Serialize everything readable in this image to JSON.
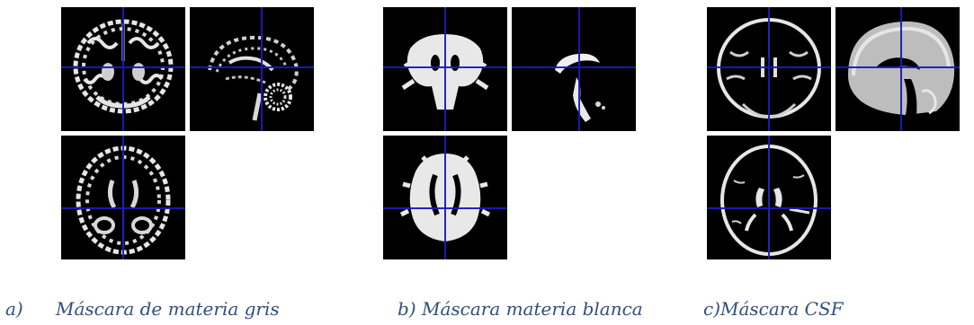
{
  "figure": {
    "groups": [
      {
        "id": "gm",
        "label_prefix": "a)",
        "label_text": "Máscara de materia gris",
        "views": [
          "coronal",
          "sagittal",
          "axial"
        ]
      },
      {
        "id": "wm",
        "label_prefix": "",
        "label_text": "b) Máscara materia blanca",
        "views": [
          "coronal",
          "sagittal",
          "axial"
        ]
      },
      {
        "id": "csf",
        "label_prefix": "",
        "label_text": "c)Máscara CSF",
        "views": [
          "coronal",
          "sagittal",
          "axial"
        ]
      }
    ],
    "colors": {
      "background": "#000000",
      "tissue": "#e6e6e6",
      "crosshair": "#1a1ab8",
      "caption": "#2f4f7f"
    }
  }
}
